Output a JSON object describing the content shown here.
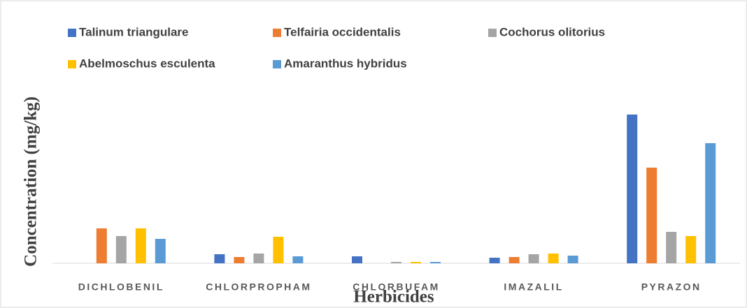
{
  "chart_data": {
    "type": "bar",
    "x_label": "Herbicides",
    "y_label": "Concentration (mg/kg)",
    "categories": [
      "DICHLOBENIL",
      "CHLORPROPHAM",
      "CHLORBUFAM",
      "IMAZALIL",
      "PYRAZON"
    ],
    "series": [
      {
        "name": "Talinum triangulare",
        "color": "#4472c4",
        "values": [
          0,
          13,
          10,
          8,
          213
        ]
      },
      {
        "name": "Telfairia occidentalis",
        "color": "#ed7d31",
        "values": [
          50,
          9,
          0,
          9,
          137
        ]
      },
      {
        "name": "Cochorus olitorius",
        "color": "#a5a5a5",
        "values": [
          39,
          14,
          2,
          13,
          45
        ]
      },
      {
        "name": "Abelmoschus   esculenta",
        "color": "#ffc000",
        "values": [
          50,
          38,
          2,
          14,
          39
        ]
      },
      {
        "name": "Amaranthus hybridus",
        "color": "#5b9bd5",
        "values": [
          35,
          10,
          2,
          11,
          172
        ]
      }
    ],
    "ylim": [
      0,
      260
    ],
    "grid": false
  }
}
